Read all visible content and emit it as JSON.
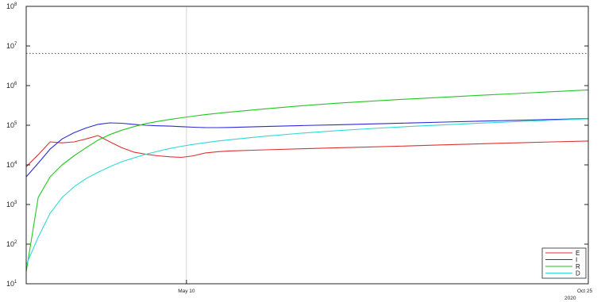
{
  "chart_data": {
    "type": "line",
    "title": "",
    "xlabel": "",
    "ylabel": "",
    "y_scale": "log",
    "ylim": [
      10,
      100000000
    ],
    "x_range": [
      "2020-03-04",
      "2020-10-25"
    ],
    "y_tick_labels": [
      {
        "value": 10,
        "mantissa": "10",
        "exp": "1"
      },
      {
        "value": 100,
        "mantissa": "10",
        "exp": "2"
      },
      {
        "value": 1000,
        "mantissa": "10",
        "exp": "3"
      },
      {
        "value": 10000,
        "mantissa": "10",
        "exp": "4"
      },
      {
        "value": 100000,
        "mantissa": "10",
        "exp": "5"
      },
      {
        "value": 1000000,
        "mantissa": "10",
        "exp": "6"
      },
      {
        "value": 10000000,
        "mantissa": "10",
        "exp": "7"
      },
      {
        "value": 100000000,
        "mantissa": "10",
        "exp": "8"
      }
    ],
    "x_tick_labels": [
      {
        "date": "2020-05-10",
        "label": "May 10"
      },
      {
        "date": "2020-10-25",
        "label": "Oct 25"
      }
    ],
    "x_secondary_label": "2020",
    "grid": "vertical line at May 10",
    "legend_position": "bottom-right",
    "reference_line": {
      "value": 6500000,
      "style": "dotted",
      "color": "#555555"
    },
    "x": [
      "2020-03-04",
      "2020-03-09",
      "2020-03-14",
      "2020-03-19",
      "2020-03-24",
      "2020-03-29",
      "2020-04-03",
      "2020-04-08",
      "2020-04-13",
      "2020-04-18",
      "2020-04-23",
      "2020-04-28",
      "2020-05-03",
      "2020-05-08",
      "2020-05-13",
      "2020-05-18",
      "2020-05-23",
      "2020-05-28",
      "2020-06-12",
      "2020-06-27",
      "2020-07-12",
      "2020-07-27",
      "2020-08-11",
      "2020-08-26",
      "2020-09-10",
      "2020-09-25",
      "2020-10-10",
      "2020-10-25"
    ],
    "series": [
      {
        "name": "E",
        "color": "#e03030",
        "values": [
          9000,
          18000,
          38000,
          36000,
          38000,
          45000,
          55000,
          38000,
          27000,
          21000,
          18500,
          17000,
          16000,
          15500,
          17000,
          20000,
          21500,
          22500,
          24000,
          25500,
          27000,
          28500,
          30000,
          32000,
          34000,
          36000,
          38000,
          40000
        ]
      },
      {
        "name": "I",
        "color": "#2b2bd6",
        "values": [
          5000,
          11000,
          25000,
          45000,
          65000,
          85000,
          105000,
          115000,
          112000,
          105000,
          100000,
          97000,
          95000,
          92000,
          89000,
          87000,
          87000,
          88000,
          93000,
          98000,
          103000,
          108000,
          114000,
          120000,
          127000,
          133000,
          140000,
          148000
        ]
      },
      {
        "name": "R",
        "color": "#22c822",
        "values": [
          20,
          1500,
          5000,
          10000,
          17000,
          27000,
          42000,
          58000,
          75000,
          92000,
          110000,
          125000,
          140000,
          155000,
          170000,
          185000,
          200000,
          215000,
          260000,
          310000,
          360000,
          410000,
          460000,
          510000,
          570000,
          630000,
          700000,
          780000
        ]
      },
      {
        "name": "D",
        "color": "#33d8d8",
        "values": [
          30,
          150,
          600,
          1500,
          2800,
          4500,
          6500,
          9000,
          12000,
          15000,
          18500,
          22000,
          26000,
          29500,
          33000,
          36500,
          40000,
          43000,
          53000,
          63000,
          73000,
          83000,
          93000,
          103000,
          113000,
          123000,
          134000,
          145000
        ]
      }
    ]
  }
}
